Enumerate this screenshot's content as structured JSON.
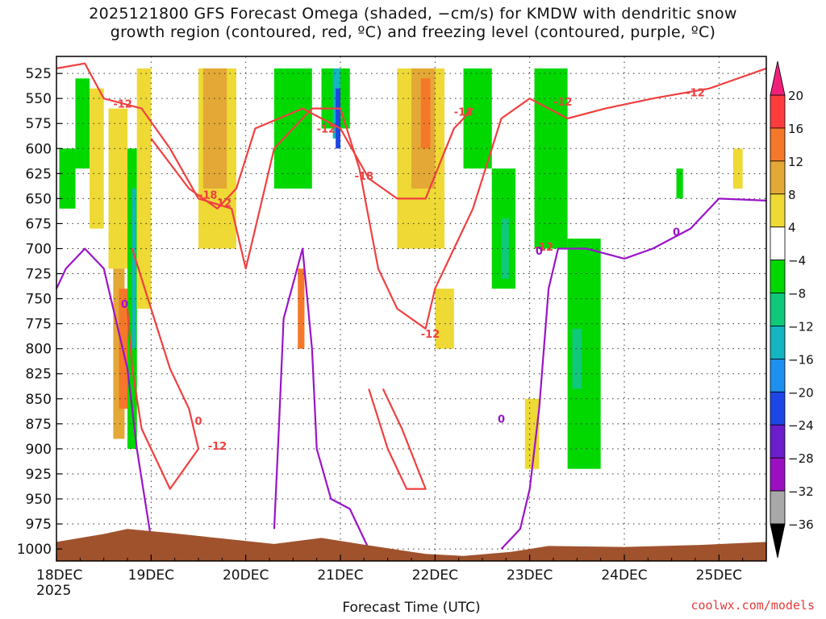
{
  "title_lines": [
    "2025121800 GFS Forecast Omega (shaded, −cm/s) for KMDW with dendritic snow",
    "growth region (contoured, red, ºC) and freezing level (contoured, purple, ºC)"
  ],
  "credit": "coolwx.com/models",
  "chart_data": {
    "type": "heatmap",
    "title": "2025121800 GFS Forecast Omega (shaded, −cm/s) for KMDW with dendritic snow growth region (contoured, red, ºC) and freezing level (contoured, purple, ºC)",
    "xlabel": "Forecast Time (UTC)",
    "ylabel": "",
    "x_ticks": [
      "18DEC",
      "19DEC",
      "20DEC",
      "21DEC",
      "22DEC",
      "23DEC",
      "24DEC",
      "25DEC"
    ],
    "x_year": "2025",
    "x_range_days": [
      0,
      7.5
    ],
    "y_ticks": [
      525,
      550,
      575,
      600,
      625,
      650,
      675,
      700,
      725,
      750,
      775,
      800,
      825,
      850,
      875,
      900,
      925,
      950,
      975,
      1000
    ],
    "y_range_hpa": [
      508,
      1012
    ],
    "colorbar": {
      "labels": [
        "20",
        "16",
        "12",
        "8",
        "4",
        "−4",
        "−8",
        "−12",
        "−16",
        "−20",
        "−24",
        "−28",
        "−32",
        "−36"
      ],
      "colors": [
        "#ff3c3c",
        "#f5782a",
        "#e4a836",
        "#eed935",
        "#ffffff",
        "#00d800",
        "#10c87a",
        "#14b4c0",
        "#1e90f0",
        "#1e46e6",
        "#6c1ecc",
        "#9a10c0",
        "#a8a8a8"
      ],
      "top_arrow_color": "#f0207a",
      "bottom_arrow_color": "#000000"
    },
    "omega_patches": [
      {
        "t": [
          0.03,
          0.2
        ],
        "p": [
          600,
          660
        ],
        "value": -6
      },
      {
        "t": [
          0.2,
          0.35
        ],
        "p": [
          530,
          620
        ],
        "value": -6
      },
      {
        "t": [
          0.35,
          0.5
        ],
        "p": [
          540,
          680
        ],
        "value": 6
      },
      {
        "t": [
          0.55,
          0.75
        ],
        "p": [
          560,
          720
        ],
        "value": 6
      },
      {
        "t": [
          0.6,
          0.72
        ],
        "p": [
          720,
          890
        ],
        "value": 10
      },
      {
        "t": [
          0.66,
          0.76
        ],
        "p": [
          740,
          860
        ],
        "value": 14
      },
      {
        "t": [
          0.75,
          0.85
        ],
        "p": [
          600,
          900
        ],
        "value": -6
      },
      {
        "t": [
          0.8,
          0.84
        ],
        "p": [
          640,
          800
        ],
        "value": -14
      },
      {
        "t": [
          0.85,
          1.0
        ],
        "p": [
          520,
          760
        ],
        "value": 6
      },
      {
        "t": [
          1.5,
          1.9
        ],
        "p": [
          520,
          700
        ],
        "value": 6
      },
      {
        "t": [
          1.55,
          1.8
        ],
        "p": [
          520,
          640
        ],
        "value": 10
      },
      {
        "t": [
          2.55,
          2.62
        ],
        "p": [
          720,
          800
        ],
        "value": 14
      },
      {
        "t": [
          2.3,
          2.7
        ],
        "p": [
          520,
          640
        ],
        "value": -6
      },
      {
        "t": [
          2.8,
          3.1
        ],
        "p": [
          520,
          580
        ],
        "value": -6
      },
      {
        "t": [
          2.92,
          3.0
        ],
        "p": [
          520,
          590
        ],
        "value": -14
      },
      {
        "t": [
          2.95,
          3.0
        ],
        "p": [
          540,
          600
        ],
        "value": -22
      },
      {
        "t": [
          3.6,
          4.1
        ],
        "p": [
          520,
          700
        ],
        "value": 6
      },
      {
        "t": [
          3.75,
          4.0
        ],
        "p": [
          520,
          640
        ],
        "value": 10
      },
      {
        "t": [
          3.85,
          3.95
        ],
        "p": [
          530,
          600
        ],
        "value": 14
      },
      {
        "t": [
          4.3,
          4.6
        ],
        "p": [
          520,
          620
        ],
        "value": -6
      },
      {
        "t": [
          4.6,
          4.85
        ],
        "p": [
          620,
          740
        ],
        "value": -6
      },
      {
        "t": [
          4.7,
          4.78
        ],
        "p": [
          670,
          730
        ],
        "value": -10
      },
      {
        "t": [
          4.0,
          4.2
        ],
        "p": [
          740,
          800
        ],
        "value": 6
      },
      {
        "t": [
          5.05,
          5.4
        ],
        "p": [
          520,
          700
        ],
        "value": -6
      },
      {
        "t": [
          5.4,
          5.75
        ],
        "p": [
          690,
          920
        ],
        "value": -6
      },
      {
        "t": [
          5.45,
          5.55
        ],
        "p": [
          780,
          840
        ],
        "value": -10
      },
      {
        "t": [
          4.95,
          5.1
        ],
        "p": [
          850,
          920
        ],
        "value": 6
      },
      {
        "t": [
          6.55,
          6.62
        ],
        "p": [
          620,
          650
        ],
        "value": -6
      },
      {
        "t": [
          7.15,
          7.25
        ],
        "p": [
          600,
          640
        ],
        "value": 6
      }
    ],
    "contours_red_dgz": [
      {
        "value": -12,
        "path": [
          [
            0.0,
            520
          ],
          [
            0.3,
            515
          ],
          [
            0.5,
            550
          ],
          [
            0.9,
            560
          ],
          [
            1.2,
            600
          ],
          [
            1.5,
            650
          ],
          [
            1.85,
            660
          ],
          [
            2.0,
            720
          ],
          [
            2.3,
            600
          ],
          [
            2.7,
            560
          ],
          [
            3.0,
            560
          ],
          [
            3.2,
            620
          ],
          [
            3.4,
            720
          ],
          [
            3.6,
            760
          ],
          [
            3.9,
            780
          ],
          [
            4.0,
            740
          ],
          [
            4.2,
            700
          ],
          [
            4.4,
            660
          ],
          [
            4.7,
            570
          ],
          [
            5.0,
            550
          ],
          [
            5.4,
            570
          ],
          [
            5.8,
            560
          ],
          [
            6.3,
            550
          ],
          [
            6.9,
            540
          ],
          [
            7.5,
            520
          ]
        ]
      },
      {
        "value": -18,
        "path": [
          [
            1.0,
            590
          ],
          [
            1.4,
            640
          ],
          [
            1.7,
            660
          ],
          [
            1.9,
            640
          ],
          [
            2.1,
            580
          ],
          [
            2.6,
            560
          ],
          [
            3.0,
            580
          ],
          [
            3.3,
            630
          ],
          [
            3.6,
            650
          ],
          [
            3.9,
            650
          ],
          [
            4.2,
            580
          ],
          [
            4.4,
            560
          ]
        ]
      },
      {
        "value": -12,
        "path": [
          [
            0.8,
            700
          ],
          [
            1.0,
            760
          ],
          [
            1.2,
            820
          ],
          [
            1.4,
            860
          ],
          [
            1.5,
            900
          ],
          [
            1.2,
            940
          ],
          [
            0.9,
            880
          ],
          [
            0.8,
            820
          ],
          [
            0.75,
            760
          ]
        ]
      },
      {
        "value": -12,
        "path": [
          [
            3.3,
            840
          ],
          [
            3.5,
            900
          ],
          [
            3.7,
            940
          ],
          [
            3.9,
            940
          ],
          [
            3.65,
            880
          ],
          [
            3.45,
            840
          ]
        ]
      }
    ],
    "contours_purple_freezing": [
      {
        "value": 0,
        "path": [
          [
            0.0,
            740
          ],
          [
            0.1,
            720
          ],
          [
            0.3,
            700
          ],
          [
            0.5,
            720
          ],
          [
            0.6,
            760
          ],
          [
            0.75,
            820
          ],
          [
            0.85,
            900
          ],
          [
            1.0,
            990
          ],
          [
            1.2,
            1005
          ]
        ]
      },
      {
        "value": 0,
        "path": [
          [
            2.3,
            980
          ],
          [
            2.35,
            880
          ],
          [
            2.4,
            770
          ],
          [
            2.6,
            700
          ],
          [
            2.7,
            800
          ],
          [
            2.75,
            900
          ],
          [
            2.9,
            950
          ],
          [
            3.1,
            960
          ],
          [
            3.3,
            1000
          ]
        ]
      },
      {
        "value": 0,
        "path": [
          [
            4.7,
            1000
          ],
          [
            4.9,
            980
          ],
          [
            5.0,
            940
          ],
          [
            5.1,
            860
          ],
          [
            5.2,
            740
          ],
          [
            5.3,
            700
          ],
          [
            5.6,
            700
          ],
          [
            6.0,
            710
          ],
          [
            6.3,
            700
          ],
          [
            6.7,
            680
          ],
          [
            7.0,
            650
          ],
          [
            7.5,
            652
          ]
        ]
      }
    ],
    "contour_labels": [
      {
        "text": "-12",
        "t": 0.7,
        "p": 555,
        "color": "red"
      },
      {
        "text": "-18",
        "t": 1.6,
        "p": 646,
        "color": "red"
      },
      {
        "text": "-12",
        "t": 1.75,
        "p": 654,
        "color": "red"
      },
      {
        "text": "-12",
        "t": 2.85,
        "p": 580,
        "color": "red"
      },
      {
        "text": "-18",
        "t": 4.3,
        "p": 563,
        "color": "red"
      },
      {
        "text": "-18",
        "t": 3.25,
        "p": 627,
        "color": "red"
      },
      {
        "text": "-12",
        "t": 3.95,
        "p": 785,
        "color": "red"
      },
      {
        "text": "-12",
        "t": 5.15,
        "p": 698,
        "color": "red"
      },
      {
        "text": "-12",
        "t": 5.35,
        "p": 553,
        "color": "red"
      },
      {
        "text": "-12",
        "t": 6.75,
        "p": 544,
        "color": "red"
      },
      {
        "text": "-12",
        "t": 1.7,
        "p": 897,
        "color": "red"
      },
      {
        "text": "0",
        "t": 1.5,
        "p": 872,
        "color": "red"
      },
      {
        "text": "0",
        "t": 0.72,
        "p": 755,
        "color": "purple"
      },
      {
        "text": "0",
        "t": 4.7,
        "p": 870,
        "color": "purple"
      },
      {
        "text": "0",
        "t": 5.1,
        "p": 702,
        "color": "purple"
      },
      {
        "text": "0",
        "t": 6.55,
        "p": 683,
        "color": "purple"
      }
    ],
    "terrain_color": "#a0522d",
    "terrain_pressure_hpa": [
      [
        0.0,
        993
      ],
      [
        0.5,
        985
      ],
      [
        0.75,
        980
      ],
      [
        1.2,
        984
      ],
      [
        1.6,
        988
      ],
      [
        2.3,
        995
      ],
      [
        2.8,
        989
      ],
      [
        3.2,
        995
      ],
      [
        3.9,
        1005
      ],
      [
        4.3,
        1007
      ],
      [
        4.8,
        1003
      ],
      [
        5.2,
        997
      ],
      [
        6.0,
        998
      ],
      [
        6.8,
        996
      ],
      [
        7.5,
        993
      ]
    ]
  }
}
